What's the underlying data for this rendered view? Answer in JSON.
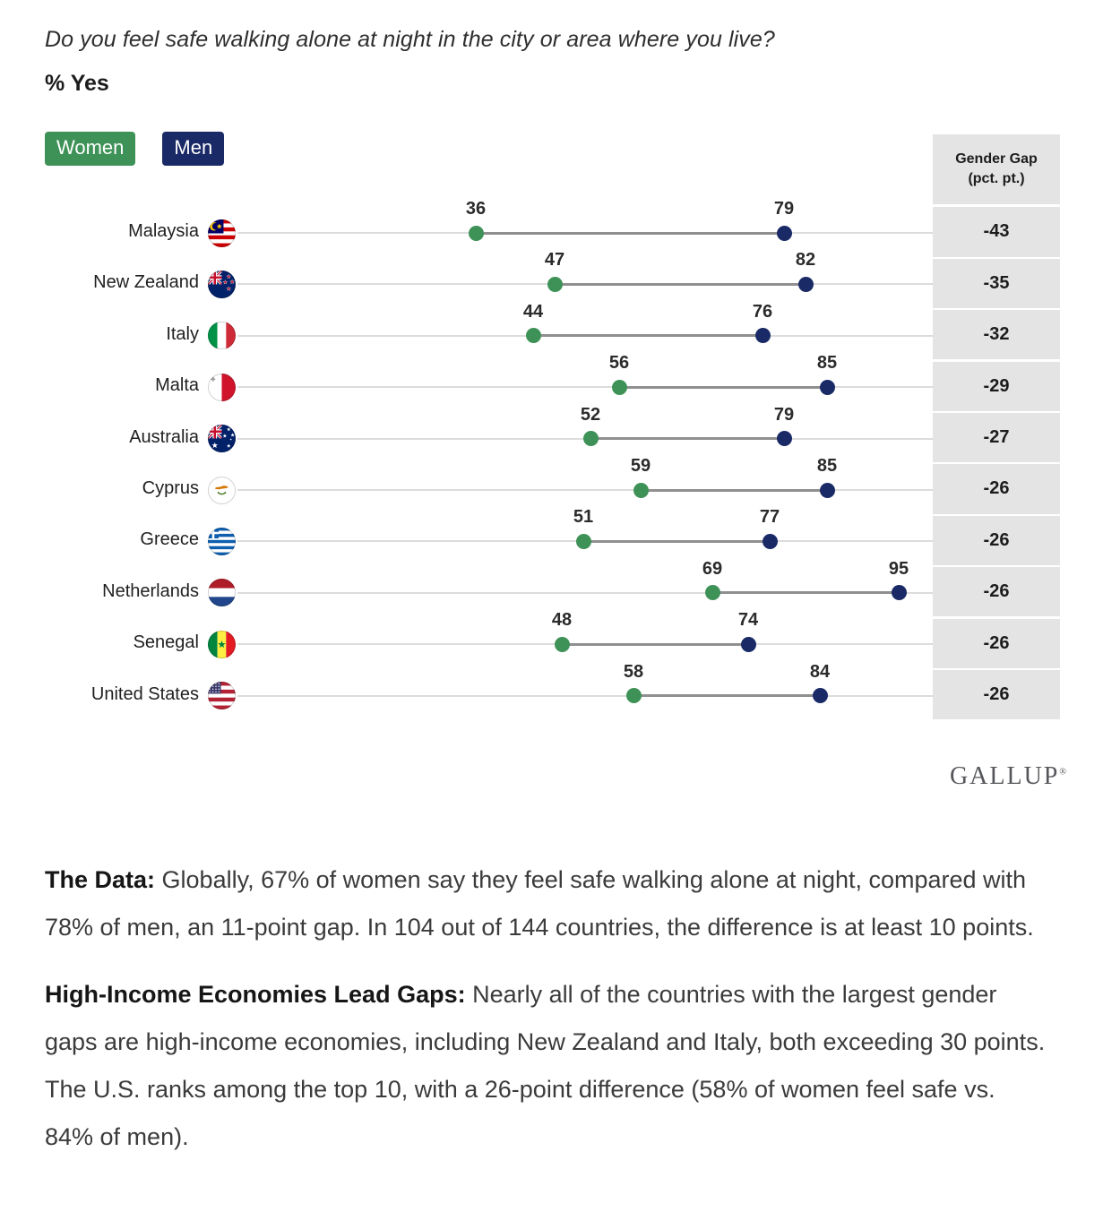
{
  "header": {
    "title": "Do you feel safe walking alone at night in the city or area where you live?",
    "subtitle": "% Yes"
  },
  "legend": {
    "women_label": "Women",
    "men_label": "Men"
  },
  "colors": {
    "women": "#3E9257",
    "men": "#1A2A66",
    "connector": "#8f8f8f",
    "track": "#dcdcdc",
    "gap_column_bg": "#e4e4e4"
  },
  "gap_column": {
    "header_line1": "Gender Gap",
    "header_line2": "(pct. pt.)"
  },
  "chart_data": {
    "type": "dumbbell",
    "title": "Do you feel safe walking alone at night in the city or area where you live?",
    "subtitle": "% Yes",
    "categories": [
      "Malaysia",
      "New Zealand",
      "Italy",
      "Malta",
      "Australia",
      "Cyprus",
      "Greece",
      "Netherlands",
      "Senegal",
      "United States"
    ],
    "flags": [
      "malaysia",
      "new-zealand",
      "italy",
      "malta",
      "australia",
      "cyprus",
      "greece",
      "netherlands",
      "senegal",
      "united-states"
    ],
    "series": [
      {
        "name": "Women",
        "values": [
          36,
          47,
          44,
          56,
          52,
          59,
          51,
          69,
          48,
          58
        ]
      },
      {
        "name": "Men",
        "values": [
          79,
          82,
          76,
          85,
          79,
          85,
          77,
          95,
          74,
          84
        ]
      }
    ],
    "gaps": [
      -43,
      -35,
      -32,
      -29,
      -27,
      -26,
      -26,
      -26,
      -26,
      -26
    ],
    "xlim": [
      0,
      100
    ],
    "legend_position": "top-left",
    "grid": false
  },
  "branding": {
    "logo_text": "GALLUP",
    "registered_mark": "®"
  },
  "paragraphs": [
    {
      "lead": "The Data:",
      "text": " Globally, 67% of women say they feel safe walking alone at night, compared with 78% of men, an 11-point gap. In 104 out of 144 countries, the difference is at least 10 points."
    },
    {
      "lead": "High-Income Economies Lead Gaps:",
      "text": " Nearly all of the countries with the largest gender gaps are high-income economies, including New Zealand and Italy, both exceeding 30 points. The U.S. ranks among the top 10, with a 26-point difference (58% of women feel safe vs. 84% of men)."
    }
  ]
}
